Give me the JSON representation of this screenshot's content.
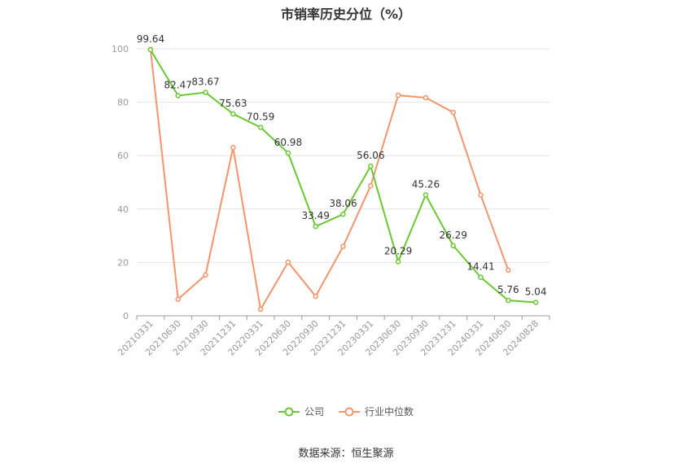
{
  "chart_data": {
    "type": "line",
    "title": "市销率历史分位（%）",
    "categories": [
      "20210331",
      "20210630",
      "20210930",
      "20211231",
      "20220331",
      "20220630",
      "20220930",
      "20221231",
      "20230331",
      "20230630",
      "20230930",
      "20231231",
      "20240331",
      "20240630",
      "20240828"
    ],
    "series": [
      {
        "name": "公司",
        "color": "#6ac832",
        "values": [
          99.64,
          82.47,
          83.67,
          75.63,
          70.59,
          60.98,
          33.49,
          38.06,
          56.06,
          20.29,
          45.26,
          26.29,
          14.41,
          5.76,
          5.04
        ],
        "labels": [
          "99.64",
          "82.47",
          "83.67",
          "75.63",
          "70.59",
          "60.98",
          "33.49",
          "38.06",
          "56.06",
          "20.29",
          "45.26",
          "26.29",
          "14.41",
          "5.76",
          "5.04"
        ]
      },
      {
        "name": "行业中位数",
        "color": "#f2956b",
        "values": [
          99.8,
          6.2,
          15.3,
          63.0,
          2.4,
          20.1,
          7.3,
          26.0,
          48.7,
          82.6,
          81.7,
          76.2,
          45.2,
          17.1,
          null
        ]
      }
    ],
    "yticks": [
      "0",
      "20",
      "40",
      "60",
      "80",
      "100"
    ],
    "ylim": [
      0,
      100
    ],
    "grid": true,
    "legend_position": "bottom"
  },
  "source": "数据来源：恒生聚源"
}
